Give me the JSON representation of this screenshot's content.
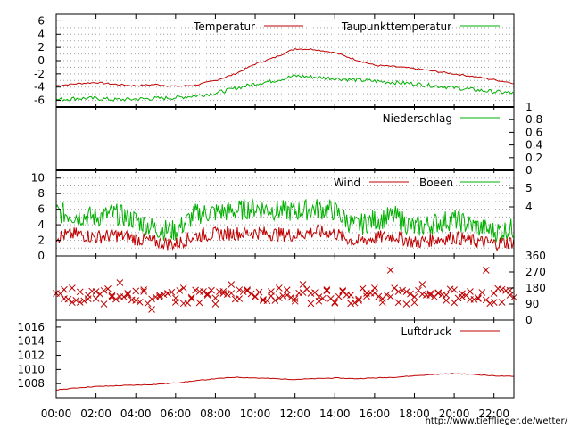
{
  "colors": {
    "red": "#c00000",
    "green": "#00b000"
  },
  "chart_data": [
    {
      "type": "line",
      "panel": "temperature",
      "ylim": [
        -7,
        7
      ],
      "yticks": [
        -6,
        -4,
        -2,
        0,
        2,
        4,
        6
      ],
      "legend": "top-right",
      "grid": true,
      "series": [
        {
          "name": "Temperatur",
          "color": "#c00000",
          "x": [
            0,
            1,
            2,
            3,
            4,
            5,
            6,
            7,
            8,
            9,
            10,
            11,
            12,
            13,
            14,
            15,
            16,
            17,
            18,
            19,
            20,
            21,
            22,
            23
          ],
          "values": [
            -3.8,
            -3.5,
            -3.3,
            -3.6,
            -3.8,
            -3.6,
            -3.9,
            -3.7,
            -3.0,
            -2.0,
            -0.5,
            0.5,
            1.8,
            1.7,
            1.2,
            0.2,
            -0.7,
            -0.9,
            -1.2,
            -1.6,
            -2.0,
            -2.4,
            -2.9,
            -3.4
          ]
        },
        {
          "name": "Taupunkttemperatur",
          "color": "#00b000",
          "x": [
            0,
            1,
            2,
            3,
            4,
            5,
            6,
            7,
            8,
            9,
            10,
            11,
            12,
            13,
            14,
            15,
            16,
            17,
            18,
            19,
            20,
            21,
            22,
            23
          ],
          "values": [
            -5.9,
            -5.7,
            -5.7,
            -5.9,
            -5.8,
            -5.7,
            -5.6,
            -5.3,
            -4.9,
            -4.2,
            -3.5,
            -3.0,
            -2.3,
            -2.5,
            -2.7,
            -2.9,
            -3.1,
            -3.3,
            -3.5,
            -3.8,
            -4.1,
            -4.4,
            -4.7,
            -4.9
          ]
        }
      ]
    },
    {
      "type": "line",
      "panel": "precipitation",
      "ylim": [
        0,
        1
      ],
      "yticks_right": [
        "1",
        "0.8",
        "0.6",
        "0.4",
        "0.2",
        "0"
      ],
      "legend": "top-right",
      "series": [
        {
          "name": "Niederschlag",
          "color": "#00b000",
          "x": [
            0,
            23
          ],
          "values": [
            0,
            0
          ]
        }
      ]
    },
    {
      "type": "line",
      "panel": "wind",
      "ylim": [
        0,
        11
      ],
      "yticks": [
        0,
        2,
        4,
        6,
        8,
        10
      ],
      "yticks_right": [
        "5",
        "4"
      ],
      "legend": "top-right",
      "grid": true,
      "series": [
        {
          "name": "Wind",
          "color": "#c00000",
          "x": [
            0,
            1,
            2,
            3,
            4,
            5,
            6,
            7,
            8,
            9,
            10,
            11,
            12,
            13,
            14,
            15,
            16,
            17,
            18,
            19,
            20,
            21,
            22,
            23
          ],
          "values": [
            2.5,
            2.8,
            2.4,
            2.7,
            2.2,
            1.8,
            1.5,
            2.6,
            2.8,
            2.9,
            3.0,
            2.8,
            2.7,
            3.1,
            2.9,
            1.8,
            2.3,
            2.6,
            1.7,
            2.1,
            2.4,
            1.9,
            1.6,
            1.8
          ]
        },
        {
          "name": "Boeen",
          "color": "#00b000",
          "x": [
            0,
            1,
            2,
            3,
            4,
            5,
            6,
            7,
            8,
            9,
            10,
            11,
            12,
            13,
            14,
            15,
            16,
            17,
            18,
            19,
            20,
            21,
            22,
            23
          ],
          "values": [
            5.6,
            5.2,
            5.0,
            5.4,
            4.6,
            3.5,
            3.2,
            5.4,
            5.6,
            5.8,
            6.2,
            5.9,
            5.7,
            6.1,
            5.8,
            3.8,
            4.6,
            5.1,
            3.6,
            4.2,
            4.7,
            3.8,
            3.1,
            3.5
          ]
        }
      ]
    },
    {
      "type": "scatter",
      "panel": "wind-direction",
      "ylim": [
        0,
        360
      ],
      "yticks_right": [
        "360",
        "270",
        "180",
        "90",
        "0"
      ],
      "series": [
        {
          "color": "#c00000",
          "x": [
            0.0,
            0.4,
            0.8,
            1.2,
            1.6,
            2.0,
            2.4,
            2.8,
            3.2,
            3.6,
            4.0,
            4.4,
            4.8,
            5.2,
            5.6,
            6.0,
            6.4,
            6.8,
            7.2,
            7.6,
            8.0,
            8.4,
            8.8,
            9.2,
            9.6,
            10.0,
            10.4,
            10.8,
            11.2,
            11.6,
            12.0,
            12.4,
            12.8,
            13.2,
            13.6,
            14.0,
            14.4,
            14.8,
            15.2,
            15.6,
            16.0,
            16.4,
            16.8,
            17.2,
            17.6,
            18.0,
            18.4,
            18.8,
            19.2,
            19.6,
            20.0,
            20.4,
            20.8,
            21.2,
            21.6,
            22.0,
            22.4,
            22.8
          ],
          "values": [
            150,
            120,
            180,
            100,
            140,
            160,
            90,
            130,
            210,
            150,
            110,
            170,
            60,
            130,
            150,
            100,
            180,
            120,
            160,
            140,
            90,
            150,
            200,
            120,
            170,
            130,
            110,
            160,
            180,
            140,
            120,
            200,
            150,
            130,
            170,
            100,
            160,
            140,
            110,
            150,
            180,
            120,
            280,
            160,
            90,
            130,
            200,
            140,
            150,
            110,
            170,
            130,
            160,
            120,
            280,
            150,
            100,
            140
          ]
        }
      ]
    },
    {
      "type": "line",
      "panel": "pressure",
      "ylim": [
        1006,
        1017
      ],
      "yticks": [
        1008,
        1010,
        1012,
        1014,
        1016
      ],
      "legend": "top-right",
      "series": [
        {
          "name": "Luftdruck",
          "color": "#c00000",
          "x": [
            0,
            1,
            2,
            3,
            4,
            5,
            6,
            7,
            8,
            9,
            10,
            11,
            12,
            13,
            14,
            15,
            16,
            17,
            18,
            19,
            20,
            21,
            22,
            23
          ],
          "values": [
            1007.1,
            1007.4,
            1007.6,
            1007.7,
            1007.8,
            1007.9,
            1008.1,
            1008.4,
            1008.7,
            1008.9,
            1008.8,
            1008.7,
            1008.6,
            1008.7,
            1008.8,
            1008.7,
            1008.8,
            1008.9,
            1009.1,
            1009.3,
            1009.4,
            1009.3,
            1009.1,
            1009.0
          ]
        }
      ]
    }
  ],
  "xaxis": {
    "min": 0,
    "max": 23,
    "ticks": [
      0,
      2,
      4,
      6,
      8,
      10,
      12,
      14,
      16,
      18,
      20,
      22
    ],
    "tick_labels": [
      "00:00",
      "02:00",
      "04:00",
      "06:00",
      "08:00",
      "10:00",
      "12:00",
      "14:00",
      "16:00",
      "18:00",
      "20:00",
      "22:00"
    ]
  },
  "footer_url": "http://www.tiefflieger.de/wetter/"
}
